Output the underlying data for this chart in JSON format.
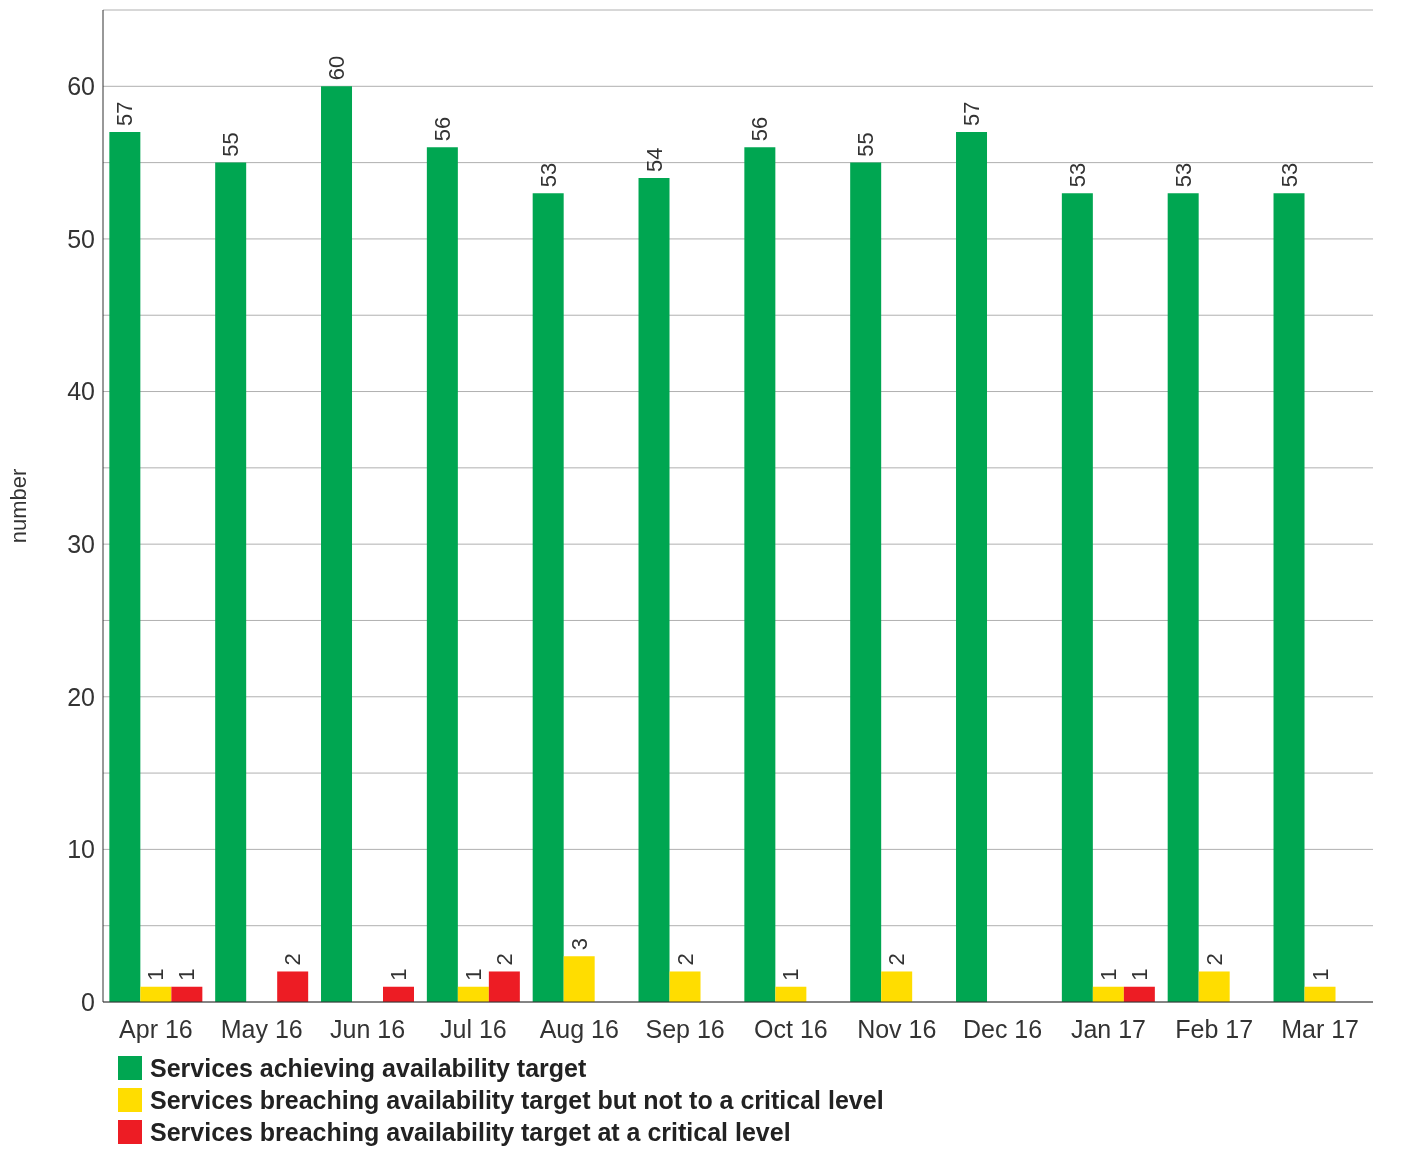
{
  "chart_data": {
    "type": "bar",
    "ylabel": "number",
    "categories": [
      "Apr 16",
      "May 16",
      "Jun 16",
      "Jul 16",
      "Aug 16",
      "Sep 16",
      "Oct 16",
      "Nov 16",
      "Dec 16",
      "Jan 17",
      "Feb 17",
      "Mar 17"
    ],
    "series": [
      {
        "name": "Services achieving availability target",
        "color": "#00a651",
        "values": [
          57,
          55,
          60,
          56,
          53,
          54,
          56,
          55,
          57,
          53,
          53,
          53
        ]
      },
      {
        "name": "Services breaching availability target but not to a critical level",
        "color": "#ffdd00",
        "values": [
          1,
          null,
          null,
          1,
          3,
          2,
          1,
          2,
          null,
          1,
          2,
          1
        ]
      },
      {
        "name": "Services breaching availability target at a critical level",
        "color": "#ed1c24",
        "values": [
          1,
          2,
          1,
          2,
          null,
          null,
          null,
          null,
          null,
          1,
          null,
          null
        ]
      }
    ],
    "ylim": [
      0,
      65
    ],
    "yticks": [
      0,
      {
        "value": 5,
        "label": null
      },
      10,
      {
        "value": 15,
        "label": null
      },
      20,
      {
        "value": 25,
        "label": null
      },
      30,
      {
        "value": 35,
        "label": null
      },
      40,
      {
        "value": 45,
        "label": null
      },
      50,
      {
        "value": 55,
        "label": null
      },
      60,
      {
        "value": 65,
        "label": null
      }
    ],
    "grid": "y",
    "legend": "bottom left",
    "data_labels": true
  }
}
